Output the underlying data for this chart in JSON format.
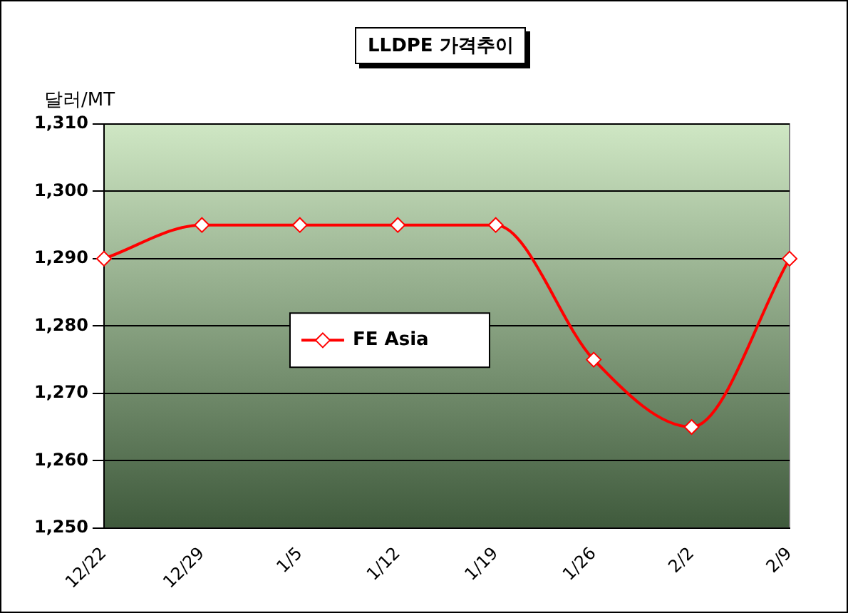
{
  "chart_data": {
    "type": "line",
    "title": "LLDPE 가격추이",
    "ylabel": "달러/MT",
    "categories": [
      "12/22",
      "12/29",
      "1/5",
      "1/12",
      "1/19",
      "1/26",
      "2/2",
      "2/9"
    ],
    "series": [
      {
        "name": "FE Asia",
        "color": "#ff0000",
        "values": [
          1290,
          1295,
          1295,
          1295,
          1295,
          1275,
          1265,
          1290
        ]
      }
    ],
    "ylim": [
      1250,
      1310
    ],
    "yticks": [
      {
        "value": 1250,
        "label": "1,250"
      },
      {
        "value": 1260,
        "label": "1,260"
      },
      {
        "value": 1270,
        "label": "1,270"
      },
      {
        "value": 1280,
        "label": "1,280"
      },
      {
        "value": 1290,
        "label": "1,290"
      },
      {
        "value": 1300,
        "label": "1,300"
      },
      {
        "value": 1310,
        "label": "1,310"
      }
    ],
    "grid": "y",
    "legend": "center",
    "marker": "diamond",
    "line_style": "solid"
  }
}
